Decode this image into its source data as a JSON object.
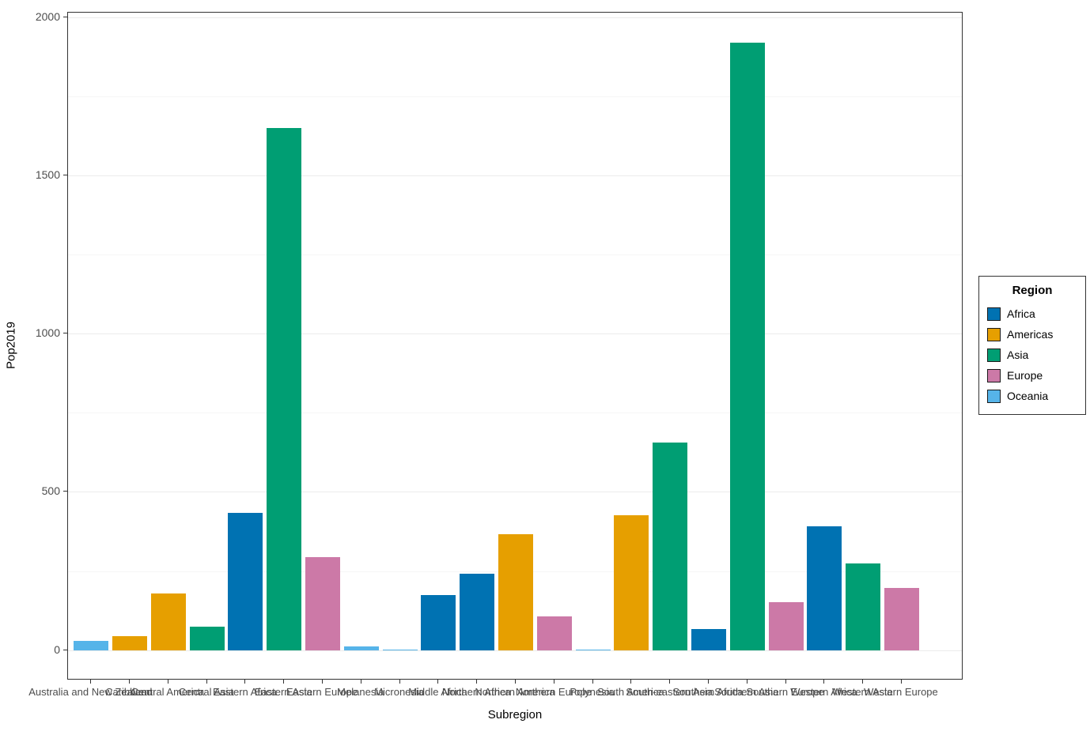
{
  "chart_data": {
    "type": "bar",
    "title": "",
    "xlabel": "Subregion",
    "ylabel": "Pop2019",
    "ylim": [
      0,
      2000
    ],
    "yticks": [
      0,
      500,
      1000,
      1500,
      2000
    ],
    "grid": "major and minor horizontal gridlines, light gray on white",
    "legend_title": "Region",
    "legend_position": "right",
    "regions": [
      {
        "name": "Africa",
        "color": "#0072B2"
      },
      {
        "name": "Americas",
        "color": "#E69F00"
      },
      {
        "name": "Asia",
        "color": "#009E73"
      },
      {
        "name": "Europe",
        "color": "#CC79A7"
      },
      {
        "name": "Oceania",
        "color": "#56B4E9"
      }
    ],
    "bars": [
      {
        "subregion": "Australia and New Zealand",
        "region": "Oceania",
        "value": 30
      },
      {
        "subregion": "Caribbean",
        "region": "Americas",
        "value": 43
      },
      {
        "subregion": "Central America",
        "region": "Americas",
        "value": 178
      },
      {
        "subregion": "Central Asia",
        "region": "Asia",
        "value": 73
      },
      {
        "subregion": "Eastern Africa",
        "region": "Africa",
        "value": 433
      },
      {
        "subregion": "Eastern Asia",
        "region": "Asia",
        "value": 1651
      },
      {
        "subregion": "Eastern Europe",
        "region": "Europe",
        "value": 293
      },
      {
        "subregion": "Melanesia",
        "region": "Oceania",
        "value": 11
      },
      {
        "subregion": "Micronesia",
        "region": "Oceania",
        "value": 0.5
      },
      {
        "subregion": "Middle Africa",
        "region": "Africa",
        "value": 174
      },
      {
        "subregion": "Northern Africa",
        "region": "Africa",
        "value": 241
      },
      {
        "subregion": "Northern America",
        "region": "Americas",
        "value": 366
      },
      {
        "subregion": "Northern Europe",
        "region": "Europe",
        "value": 106
      },
      {
        "subregion": "Polynesia",
        "region": "Oceania",
        "value": 0.7
      },
      {
        "subregion": "South America",
        "region": "Americas",
        "value": 427
      },
      {
        "subregion": "South-eastern Asia",
        "region": "Asia",
        "value": 655
      },
      {
        "subregion": "Southern Africa",
        "region": "Africa",
        "value": 66
      },
      {
        "subregion": "Southern Asia",
        "region": "Asia",
        "value": 1919
      },
      {
        "subregion": "Southern Europe",
        "region": "Europe",
        "value": 152
      },
      {
        "subregion": "Western Africa",
        "region": "Africa",
        "value": 391
      },
      {
        "subregion": "Western Asia",
        "region": "Asia",
        "value": 275
      },
      {
        "subregion": "Western Europe",
        "region": "Europe",
        "value": 196
      }
    ]
  }
}
